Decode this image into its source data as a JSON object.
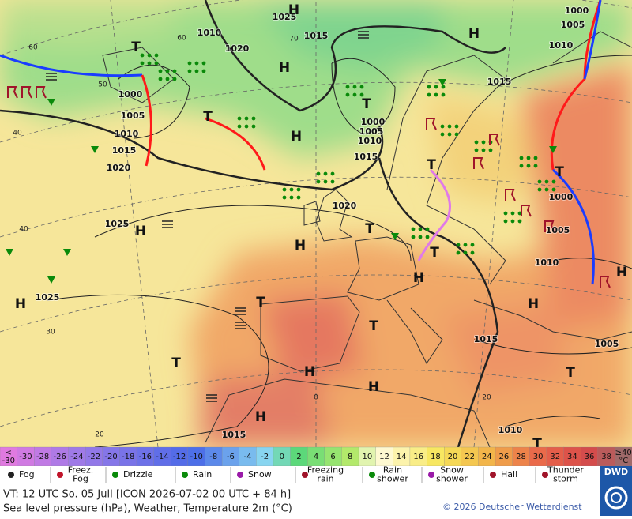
{
  "map": {
    "pressure_labels": [
      "1025",
      "1010",
      "1020",
      "1015",
      "1000",
      "1005",
      "1010",
      "1015",
      "1000",
      "1005",
      "1010",
      "1015",
      "1020",
      "1000",
      "1005",
      "1010",
      "1015",
      "1020",
      "1025",
      "1000",
      "1005",
      "1010",
      "1025",
      "1015",
      "1005",
      "1015",
      "1010"
    ],
    "centers": [
      "H",
      "H",
      "H",
      "H",
      "H",
      "H",
      "H",
      "H",
      "H",
      "H",
      "H",
      "H",
      "H",
      "T",
      "T",
      "T",
      "T",
      "T",
      "T",
      "T",
      "T",
      "T",
      "T",
      "T",
      "T"
    ],
    "grid_labels": [
      "60",
      "50",
      "40",
      "40",
      "30",
      "20",
      "0",
      "20",
      "70",
      "60"
    ]
  },
  "scale": {
    "labels": [
      "<\n-30",
      "-30",
      "-28",
      "-26",
      "-24",
      "-22",
      "-20",
      "-18",
      "-16",
      "-14",
      "-12",
      "-10",
      "-8",
      "-6",
      "-4",
      "-2",
      "0",
      "2",
      "4",
      "6",
      "8",
      "10",
      "12",
      "14",
      "16",
      "18",
      "20",
      "22",
      "24",
      "26",
      "28",
      "30",
      "32",
      "34",
      "36",
      "38",
      "≥40\n°C"
    ]
  },
  "legend": {
    "items": [
      "Fog",
      "Freez.\nFog",
      "Drizzle",
      "Rain",
      "Snow",
      "Freezing\nrain",
      "Rain\nshower",
      "Snow\nshower",
      "Hail",
      "Thunder\nstorm"
    ]
  },
  "footer": {
    "valid_time": "VT: 12 UTC So.  05 Juli [ICON 2026-07-02  00 UTC + 84 h]",
    "description": "Sea level pressure (hPa), Weather, Temperature 2m (°C)",
    "copyright": "© 2026 Deutscher Wetterdienst",
    "logo": "DWD"
  }
}
